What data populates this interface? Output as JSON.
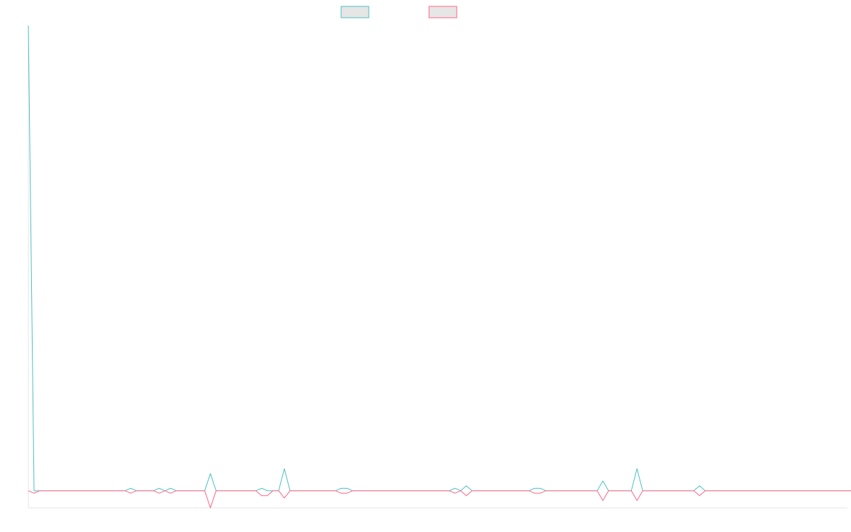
{
  "chart_data": {
    "type": "line",
    "title": "",
    "xlabel": "",
    "ylabel": "",
    "legend_position": "top-center",
    "grid": false,
    "x_count": 145,
    "ylim": [
      -0.7,
      19
    ],
    "series": [
      {
        "name": "",
        "color": "#4bc0c0",
        "values": [
          19,
          0,
          0,
          0,
          0,
          0,
          0,
          0,
          0,
          0,
          0,
          0,
          0,
          0,
          0,
          0,
          0,
          0,
          0.1,
          0,
          0,
          0,
          0,
          0.1,
          0,
          0.1,
          0,
          0,
          0,
          0,
          0,
          0,
          0.7,
          0,
          0,
          0,
          0,
          0,
          0,
          0,
          0,
          0.1,
          0,
          0,
          0,
          0.9,
          0,
          0,
          0,
          0,
          0,
          0,
          0,
          0,
          0,
          0.1,
          0.1,
          0,
          0,
          0,
          0,
          0,
          0,
          0,
          0,
          0,
          0,
          0,
          0,
          0,
          0,
          0,
          0,
          0,
          0,
          0.1,
          0,
          0.2,
          0,
          0,
          0,
          0,
          0,
          0,
          0,
          0,
          0,
          0,
          0,
          0.1,
          0.1,
          0,
          0,
          0,
          0,
          0,
          0,
          0,
          0,
          0,
          0,
          0.4,
          0,
          0,
          0,
          0,
          0,
          0.9,
          0,
          0,
          0,
          0,
          0,
          0,
          0,
          0,
          0,
          0,
          0.2,
          0,
          0,
          0,
          0,
          0,
          0,
          0,
          0,
          0,
          0,
          0,
          0,
          0,
          0,
          0,
          0,
          0,
          0,
          0,
          0,
          0,
          0,
          0,
          0,
          0,
          0,
          0,
          0
        ]
      },
      {
        "name": "",
        "color": "#ff6384",
        "values": [
          0,
          -0.1,
          0,
          0,
          0,
          0,
          0,
          0,
          0,
          0,
          0,
          0,
          0,
          0,
          0,
          0,
          0,
          0,
          -0.1,
          0,
          0,
          0,
          0,
          -0.1,
          0,
          -0.1,
          0,
          0,
          0,
          0,
          0,
          0,
          -0.7,
          0,
          0,
          0,
          0,
          0,
          0,
          0,
          0,
          -0.2,
          -0.2,
          0,
          0,
          -0.3,
          0,
          0,
          0,
          0,
          0,
          0,
          0,
          0,
          0,
          -0.1,
          -0.1,
          0,
          0,
          0,
          0,
          0,
          0,
          0,
          0,
          0,
          0,
          0,
          0,
          0,
          0,
          0,
          0,
          0,
          0,
          -0.1,
          0,
          -0.2,
          0,
          0,
          0,
          0,
          0,
          0,
          0,
          0,
          0,
          0,
          0,
          -0.1,
          -0.1,
          0,
          0,
          0,
          0,
          0,
          0,
          0,
          0,
          0,
          0,
          -0.4,
          0,
          0,
          0,
          0,
          0,
          -0.4,
          0,
          0,
          0,
          0,
          0,
          0,
          0,
          0,
          0,
          0,
          -0.2,
          0,
          0,
          0,
          0,
          0,
          0,
          0,
          0,
          0,
          0,
          0,
          0,
          0,
          0,
          0,
          0,
          0,
          0,
          0,
          0,
          0,
          0,
          0,
          0,
          0,
          0,
          0,
          0
        ]
      }
    ]
  }
}
